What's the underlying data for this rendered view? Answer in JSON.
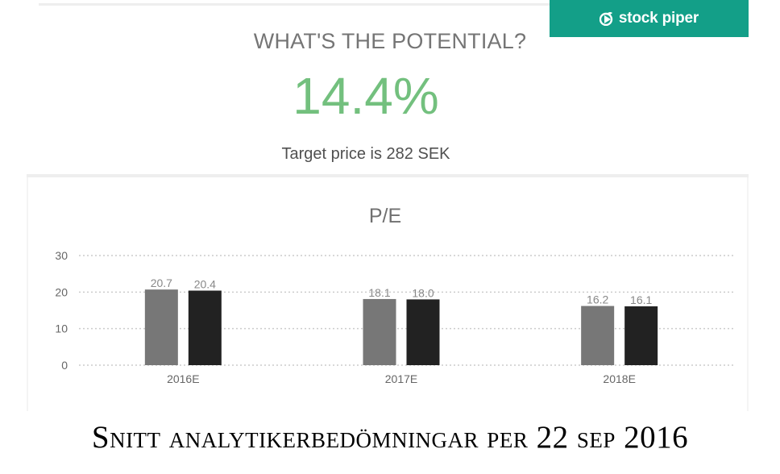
{
  "logo": {
    "text": "stock piper",
    "icon": "play-leaf-icon",
    "background": "#139f88"
  },
  "potential": {
    "title": "WHAT'S THE POTENTIAL?",
    "value": "14.4%",
    "value_color": "#73c07e"
  },
  "target": {
    "text": "Target price is 282 SEK"
  },
  "caption": {
    "text": "Snitt analytikerbedömningar per 22 sep 2016"
  },
  "chart_data": {
    "type": "bar",
    "title": "P/E",
    "categories": [
      "2016E",
      "2017E",
      "2018E"
    ],
    "series": [
      {
        "values": [
          20.7,
          18.1,
          16.2
        ],
        "color": "#777777"
      },
      {
        "values": [
          20.4,
          18.0,
          16.1
        ],
        "color": "#222222"
      }
    ],
    "data_labels": [
      [
        "20.7",
        "18.1",
        "16.2"
      ],
      [
        "20.4",
        "18.0",
        "16.1"
      ]
    ],
    "yticks": [
      0,
      10,
      20,
      30
    ],
    "ylim": [
      0,
      30
    ],
    "grid": true,
    "legend": "none"
  }
}
